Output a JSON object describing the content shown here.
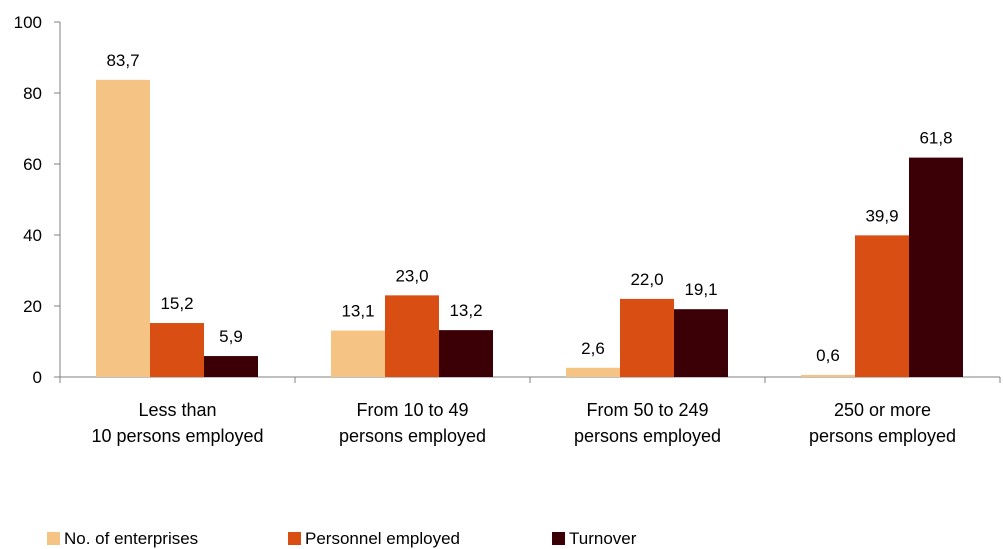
{
  "chart_data": {
    "type": "bar",
    "categories": [
      [
        "Less than",
        "10 persons employed"
      ],
      [
        "From 10 to 49",
        "persons employed"
      ],
      [
        "From 50 to 249",
        "persons employed"
      ],
      [
        "250 or more",
        "persons employed"
      ]
    ],
    "series": [
      {
        "name": "No. of enterprises",
        "color": "#F5C485",
        "values": [
          83.7,
          13.1,
          2.6,
          0.6
        ],
        "labels": [
          "83,7",
          "13,1",
          "2,6",
          "0,6"
        ]
      },
      {
        "name": "Personnel employed",
        "color": "#D94E12",
        "values": [
          15.2,
          23.0,
          22.0,
          39.9
        ],
        "labels": [
          "15,2",
          "23,0",
          "22,0",
          "39,9"
        ]
      },
      {
        "name": "Turnover",
        "color": "#3A0005",
        "values": [
          5.9,
          13.2,
          19.1,
          61.8
        ],
        "labels": [
          "5,9",
          "13,2",
          "19,1",
          "61,8"
        ]
      }
    ],
    "ylim": [
      0,
      100
    ],
    "yticks": [
      0,
      20,
      40,
      60,
      80,
      100
    ],
    "grid": false,
    "legend_position": "bottom"
  }
}
